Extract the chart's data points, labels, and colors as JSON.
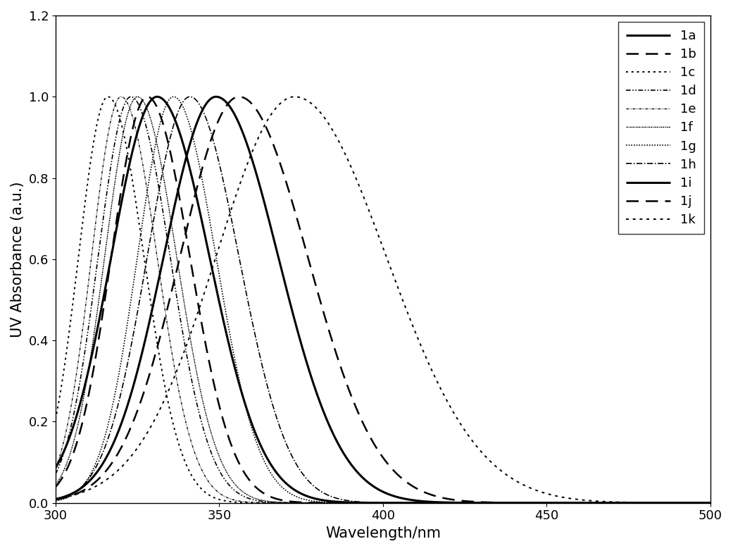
{
  "xlabel": "Wavelength/nm",
  "ylabel": "UV Absorbance (a.u.)",
  "xlim": [
    300,
    500
  ],
  "ylim": [
    0.0,
    1.2
  ],
  "xticks": [
    300,
    350,
    400,
    450,
    500
  ],
  "yticks": [
    0.0,
    0.2,
    0.4,
    0.6,
    0.8,
    1.0,
    1.2
  ],
  "curves": [
    {
      "label": "1a",
      "peak": 331,
      "sigma_l": 14,
      "sigma_r": 16,
      "lw": 2.2,
      "linestyle": "solid",
      "val300": 0.46
    },
    {
      "label": "1b",
      "peak": 328,
      "sigma_l": 11,
      "sigma_r": 13,
      "lw": 1.8,
      "linestyle": "dashed",
      "val300": 0.28
    },
    {
      "label": "1c",
      "peak": 316,
      "sigma_l": 9,
      "sigma_r": 11,
      "lw": 1.4,
      "linestyle": "dotted_s",
      "val300": 0.72
    },
    {
      "label": "1d",
      "peak": 323,
      "sigma_l": 10,
      "sigma_r": 12,
      "lw": 1.2,
      "linestyle": "dashdotdot",
      "val300": 0.9
    },
    {
      "label": "1e",
      "peak": 320,
      "sigma_l": 9,
      "sigma_r": 11,
      "lw": 1.0,
      "linestyle": "finedash2",
      "val300": 0.95
    },
    {
      "label": "1f",
      "peak": 325,
      "sigma_l": 10,
      "sigma_r": 12,
      "lw": 1.0,
      "linestyle": "finedash3",
      "val300": 0.64
    },
    {
      "label": "1g",
      "peak": 336,
      "sigma_l": 11,
      "sigma_r": 13,
      "lw": 1.2,
      "linestyle": "densedot",
      "val300": 0.3
    },
    {
      "label": "1h",
      "peak": 341,
      "sigma_l": 13,
      "sigma_r": 15,
      "lw": 1.2,
      "linestyle": "dashdot2",
      "val300": 0.2
    },
    {
      "label": "1i",
      "peak": 349,
      "sigma_l": 16,
      "sigma_r": 19,
      "lw": 2.2,
      "linestyle": "solid",
      "val300": 0.28
    },
    {
      "label": "1j",
      "peak": 356,
      "sigma_l": 18,
      "sigma_r": 21,
      "lw": 1.8,
      "linestyle": "dashed",
      "val300": 0.0
    },
    {
      "label": "1k",
      "peak": 373,
      "sigma_l": 24,
      "sigma_r": 28,
      "lw": 1.4,
      "linestyle": "dotted_l",
      "val300": 0.0
    }
  ],
  "background_color": "#ffffff",
  "line_color": "#000000",
  "label_fontsize": 15,
  "tick_fontsize": 13,
  "legend_fontsize": 13
}
